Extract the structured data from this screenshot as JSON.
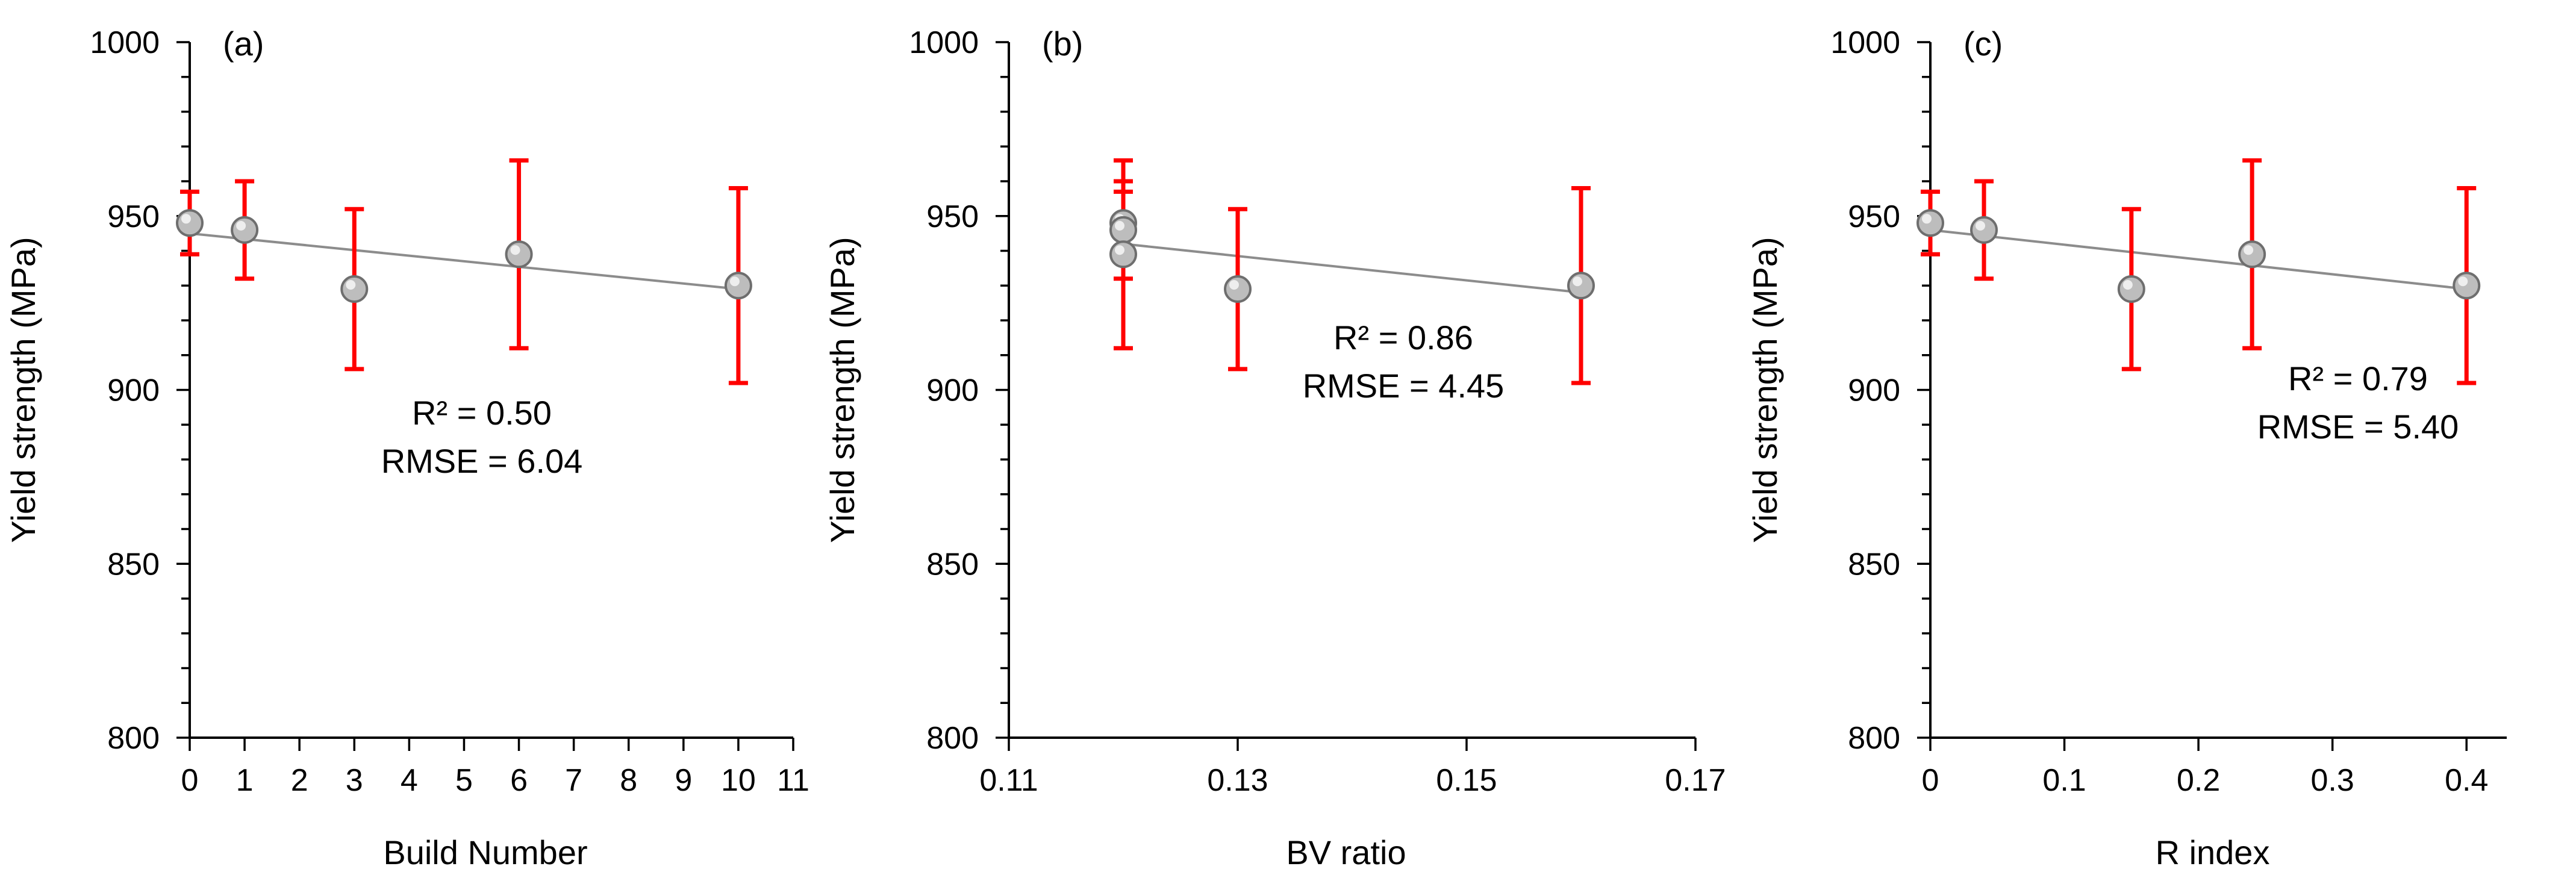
{
  "colors": {
    "axis": "#000000",
    "errorbar": "#ff0000",
    "trendline": "#8c8c8c",
    "marker": "#bdbdbd",
    "marker_edge": "#6e6e6e"
  },
  "chart_data": [
    {
      "type": "scatter",
      "panel_label": "(a)",
      "xlabel": "Build Number",
      "ylabel": "Yield strength (MPa)",
      "xlim": [
        0,
        11
      ],
      "ylim": [
        800,
        1000
      ],
      "xticks": [
        0,
        1,
        2,
        3,
        4,
        5,
        6,
        7,
        8,
        9,
        10,
        11
      ],
      "xtick_labels": [
        "0",
        "1",
        "2",
        "3",
        "4",
        "5",
        "6",
        "7",
        "8",
        "9",
        "10",
        "11"
      ],
      "yticks": [
        800,
        850,
        900,
        950,
        1000
      ],
      "ytick_labels": [
        "800",
        "850",
        "900",
        "950",
        "1000"
      ],
      "x": [
        0,
        1,
        3,
        6,
        10
      ],
      "y": [
        948,
        946,
        929,
        939,
        930
      ],
      "yerr": [
        9,
        14,
        23,
        27,
        28
      ],
      "trendline": {
        "x": [
          0,
          10
        ],
        "y": [
          945,
          929
        ]
      },
      "annotation": [
        "R² = 0.50",
        "RMSE = 6.04"
      ]
    },
    {
      "type": "scatter",
      "panel_label": "(b)",
      "xlabel": "BV ratio",
      "ylabel": "Yield strength (MPa)",
      "xlim": [
        0.11,
        0.17
      ],
      "ylim": [
        800,
        1000
      ],
      "xticks": [
        0.11,
        0.13,
        0.15,
        0.17
      ],
      "xtick_labels": [
        "0.11",
        "0.13",
        "0.15",
        "0.17"
      ],
      "yticks": [
        800,
        850,
        900,
        950,
        1000
      ],
      "ytick_labels": [
        "800",
        "850",
        "900",
        "950",
        "1000"
      ],
      "x": [
        0.12,
        0.12,
        0.12,
        0.13,
        0.16
      ],
      "y": [
        948,
        946,
        939,
        929,
        930
      ],
      "yerr": [
        9,
        14,
        27,
        23,
        28
      ],
      "trendline": {
        "x": [
          0.12,
          0.16
        ],
        "y": [
          942,
          928
        ]
      },
      "annotation": [
        "R² = 0.86",
        "RMSE = 4.45"
      ]
    },
    {
      "type": "scatter",
      "panel_label": "(c)",
      "xlabel": "R index",
      "ylabel": "Yield strength (MPa)",
      "xlim": [
        0,
        0.43
      ],
      "ylim": [
        800,
        1000
      ],
      "xticks": [
        0,
        0.1,
        0.2,
        0.3,
        0.4
      ],
      "xtick_labels": [
        "0",
        "0.1",
        "0.2",
        "0.3",
        "0.4"
      ],
      "yticks": [
        800,
        850,
        900,
        950,
        1000
      ],
      "ytick_labels": [
        "800",
        "850",
        "900",
        "950",
        "1000"
      ],
      "x": [
        0,
        0.04,
        0.15,
        0.24,
        0.4
      ],
      "y": [
        948,
        946,
        929,
        939,
        930
      ],
      "yerr": [
        9,
        14,
        23,
        27,
        28
      ],
      "trendline": {
        "x": [
          0,
          0.4
        ],
        "y": [
          946,
          929
        ]
      },
      "annotation": [
        "R² = 0.79",
        "RMSE = 5.40"
      ]
    }
  ]
}
